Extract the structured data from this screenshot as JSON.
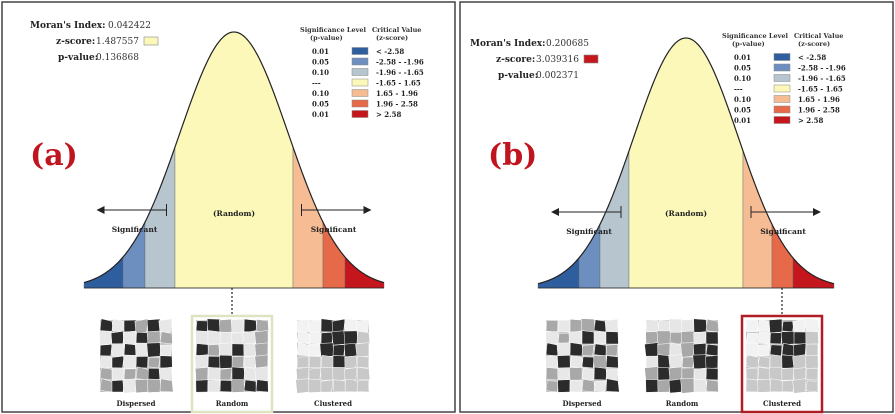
{
  "colors": {
    "random_fill": "#fbf8b9",
    "dispersed_dark": "#2e5e9e",
    "dispersed_mid": "#6d8fbf",
    "dispersed_light": "#b7c5cf",
    "clustered_light": "#f6bd94",
    "clustered_mid": "#e66a4a",
    "clustered_dark": "#c4161c",
    "random_box_border": "#dfe3c2",
    "clustered_box_border": "#b01d24"
  },
  "legend": {
    "head_sig_1": "Significance Level",
    "head_sig_2": "(p-value)",
    "head_crit_1": "Critical Value",
    "head_crit_2": "(z-score)",
    "rows": [
      {
        "p": "0.01",
        "z": "< -2.58",
        "color": "#2e5e9e"
      },
      {
        "p": "0.05",
        "z": "-2.58 - -1.96",
        "color": "#6d8fbf"
      },
      {
        "p": "0.10",
        "z": "-1.96 - -1.65",
        "color": "#b7c5cf"
      },
      {
        "p": "---",
        "z": "-1.65 - 1.65",
        "color": "#fbf8b9"
      },
      {
        "p": "0.10",
        "z": "1.65 - 1.96",
        "color": "#f6bd94"
      },
      {
        "p": "0.05",
        "z": "1.96 - 2.58",
        "color": "#e66a4a"
      },
      {
        "p": "0.01",
        "z": "> 2.58",
        "color": "#c4161c"
      }
    ]
  },
  "curve_labels": {
    "random": "(Random)",
    "significant_left": "Significant",
    "significant_right": "Significant"
  },
  "thumb_captions": [
    "Dispersed",
    "Random",
    "Clustered"
  ],
  "panels": [
    {
      "letter": "(a)",
      "moran_label": "Moran's Index:",
      "moran_value": "0.042422",
      "z_label": "z-score:",
      "z_value": "1.487557",
      "z_swatch_color": "#fbf8b9",
      "p_label": "p-value:",
      "p_value": "0.136868",
      "highlight": "Random"
    },
    {
      "letter": "(b)",
      "moran_label": "Moran's Index:",
      "moran_value": "0.200685",
      "z_label": "z-score:",
      "z_value": "3.039316",
      "z_swatch_color": "#c4161c",
      "p_label": "p-value:",
      "p_value": "0.002371",
      "highlight": "Clustered"
    }
  ]
}
